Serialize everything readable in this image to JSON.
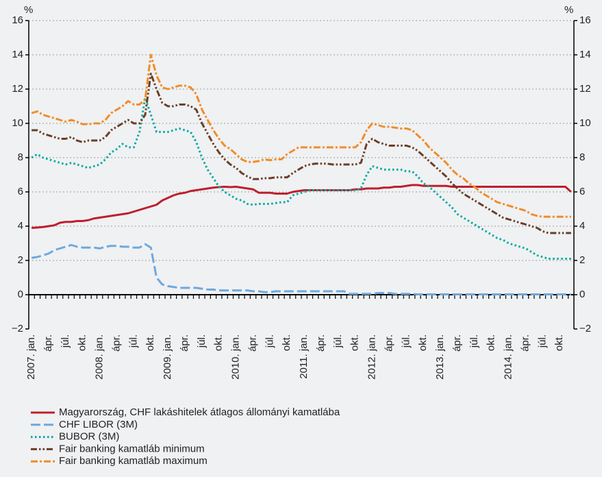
{
  "chart_data": {
    "type": "line",
    "y_unit": "%",
    "categories": [
      "2007. jan.",
      null,
      null,
      "ápr.",
      null,
      null,
      "júl.",
      null,
      null,
      "okt.",
      null,
      null,
      "2008. jan.",
      null,
      null,
      "ápr.",
      null,
      null,
      "júl.",
      null,
      null,
      "okt.",
      null,
      null,
      "2009. jan.",
      null,
      null,
      "ápr.",
      null,
      null,
      "júl.",
      null,
      null,
      "okt.",
      null,
      null,
      "2010. jan.",
      null,
      null,
      "ápr.",
      null,
      null,
      "júl.",
      null,
      null,
      "okt.",
      null,
      null,
      "2011. jan.",
      null,
      null,
      "ápr.",
      null,
      null,
      "júl.",
      null,
      null,
      "okt.",
      null,
      null,
      "2012. jan.",
      null,
      null,
      "ápr.",
      null,
      null,
      "júl.",
      null,
      null,
      "okt.",
      null,
      null,
      "2013. jan.",
      null,
      null,
      "ápr.",
      null,
      null,
      "júl.",
      null,
      null,
      "okt.",
      null,
      null,
      "2014. jan.",
      null,
      null,
      "ápr.",
      null,
      null,
      "júl.",
      null,
      null,
      "okt.",
      null,
      null
    ],
    "series": [
      {
        "name": "Magyarország, CHF lakáshitelek átlagos állományi kamatlába",
        "color": "#be1e2d",
        "dash": "solid",
        "values": [
          3.9,
          3.92,
          3.95,
          4.0,
          4.05,
          4.2,
          4.25,
          4.25,
          4.3,
          4.3,
          4.35,
          4.45,
          4.5,
          4.55,
          4.6,
          4.65,
          4.7,
          4.75,
          4.85,
          4.95,
          5.05,
          5.15,
          5.25,
          5.5,
          5.65,
          5.8,
          5.9,
          5.95,
          6.05,
          6.1,
          6.15,
          6.2,
          6.25,
          6.28,
          6.3,
          6.28,
          6.3,
          6.25,
          6.2,
          6.15,
          5.95,
          5.95,
          5.95,
          5.9,
          5.9,
          5.9,
          6.0,
          6.05,
          6.1,
          6.1,
          6.1,
          6.1,
          6.1,
          6.1,
          6.1,
          6.1,
          6.1,
          6.15,
          6.15,
          6.2,
          6.2,
          6.2,
          6.25,
          6.25,
          6.3,
          6.3,
          6.35,
          6.4,
          6.4,
          6.35,
          6.35,
          6.35,
          6.35,
          6.35,
          6.3,
          6.3,
          6.3,
          6.3,
          6.3,
          6.3,
          6.3,
          6.3,
          6.3,
          6.3,
          6.3,
          6.3,
          6.3,
          6.3,
          6.3,
          6.3,
          6.3,
          6.3,
          6.3,
          6.3,
          6.3,
          6.0
        ]
      },
      {
        "name": "CHF LIBOR (3M)",
        "color": "#6fa8dc",
        "dash": "dashed",
        "values": [
          2.15,
          2.2,
          2.3,
          2.4,
          2.6,
          2.7,
          2.8,
          2.9,
          2.8,
          2.75,
          2.75,
          2.75,
          2.7,
          2.8,
          2.85,
          2.85,
          2.8,
          2.8,
          2.75,
          2.75,
          2.95,
          2.75,
          1.0,
          0.6,
          0.5,
          0.45,
          0.4,
          0.4,
          0.4,
          0.4,
          0.35,
          0.3,
          0.3,
          0.25,
          0.25,
          0.25,
          0.25,
          0.25,
          0.25,
          0.2,
          0.2,
          0.15,
          0.15,
          0.2,
          0.2,
          0.2,
          0.2,
          0.2,
          0.2,
          0.2,
          0.2,
          0.2,
          0.2,
          0.2,
          0.2,
          0.2,
          0.05,
          0.05,
          0.05,
          0.05,
          0.05,
          0.1,
          0.1,
          0.1,
          0.05,
          0.05,
          0.05,
          0.05,
          0.02,
          0.02,
          0.02,
          0.02,
          0.02,
          0.02,
          0.02,
          0.02,
          0.02,
          0.02,
          0.02,
          0.02,
          0.02,
          0.02,
          0.02,
          0.02,
          0.02,
          0.02,
          0.02,
          0.02,
          0.02,
          0.02,
          0.02,
          0.02,
          0.02,
          0.02,
          0.02,
          0.01
        ]
      },
      {
        "name": "BUBOR (3M)",
        "color": "#00a99d",
        "dash": "dotted",
        "values": [
          8.0,
          8.2,
          8.0,
          7.9,
          7.8,
          7.7,
          7.6,
          7.7,
          7.6,
          7.5,
          7.4,
          7.5,
          7.6,
          7.9,
          8.3,
          8.5,
          8.8,
          8.6,
          8.6,
          9.5,
          11.5,
          10.5,
          9.5,
          9.5,
          9.5,
          9.6,
          9.7,
          9.6,
          9.5,
          8.9,
          8.0,
          7.3,
          6.8,
          6.3,
          6.0,
          5.8,
          5.6,
          5.5,
          5.3,
          5.25,
          5.3,
          5.3,
          5.3,
          5.35,
          5.4,
          5.4,
          5.8,
          5.9,
          6.0,
          6.1,
          6.1,
          6.1,
          6.1,
          6.1,
          6.1,
          6.1,
          6.1,
          6.1,
          6.2,
          7.0,
          7.5,
          7.4,
          7.3,
          7.3,
          7.3,
          7.3,
          7.2,
          7.2,
          6.9,
          6.5,
          6.3,
          6.0,
          5.7,
          5.4,
          5.1,
          4.7,
          4.5,
          4.3,
          4.1,
          3.9,
          3.7,
          3.5,
          3.3,
          3.2,
          3.0,
          2.9,
          2.8,
          2.7,
          2.5,
          2.3,
          2.2,
          2.1,
          2.1,
          2.1,
          2.1,
          2.1
        ]
      },
      {
        "name": "Fair banking kamatláb minimum",
        "color": "#6b3e26",
        "dash": "dashdotdot",
        "values": [
          9.6,
          9.6,
          9.4,
          9.3,
          9.2,
          9.1,
          9.1,
          9.2,
          9.0,
          8.9,
          9.0,
          9.0,
          9.0,
          9.2,
          9.6,
          9.8,
          10.0,
          10.2,
          10.0,
          10.0,
          10.5,
          12.9,
          12.0,
          11.2,
          11.0,
          11.0,
          11.1,
          11.1,
          11.0,
          10.8,
          10.0,
          9.4,
          8.8,
          8.3,
          7.9,
          7.6,
          7.4,
          7.1,
          6.9,
          6.75,
          6.75,
          6.8,
          6.8,
          6.85,
          6.85,
          6.85,
          7.1,
          7.3,
          7.5,
          7.6,
          7.65,
          7.65,
          7.65,
          7.6,
          7.6,
          7.6,
          7.6,
          7.6,
          7.7,
          8.8,
          9.1,
          8.9,
          8.8,
          8.7,
          8.7,
          8.7,
          8.7,
          8.6,
          8.4,
          8.1,
          7.8,
          7.5,
          7.2,
          6.9,
          6.5,
          6.2,
          5.9,
          5.7,
          5.5,
          5.3,
          5.1,
          4.9,
          4.7,
          4.5,
          4.4,
          4.3,
          4.2,
          4.1,
          4.0,
          3.9,
          3.7,
          3.6,
          3.6,
          3.6,
          3.6,
          3.6
        ]
      },
      {
        "name": "Fair banking kamatláb maximum",
        "color": "#f28c28",
        "dash": "dashdot",
        "values": [
          10.6,
          10.7,
          10.5,
          10.4,
          10.3,
          10.2,
          10.1,
          10.2,
          10.1,
          9.95,
          9.95,
          10.0,
          10.0,
          10.2,
          10.6,
          10.8,
          11.0,
          11.3,
          11.1,
          11.1,
          11.4,
          14.0,
          12.8,
          12.1,
          12.0,
          12.1,
          12.2,
          12.2,
          12.1,
          11.7,
          10.8,
          10.2,
          9.6,
          9.1,
          8.7,
          8.5,
          8.2,
          7.9,
          7.75,
          7.75,
          7.8,
          7.9,
          7.85,
          7.9,
          7.9,
          8.2,
          8.4,
          8.6,
          8.6,
          8.6,
          8.6,
          8.6,
          8.6,
          8.6,
          8.6,
          8.6,
          8.6,
          8.6,
          8.9,
          9.6,
          10.0,
          9.9,
          9.8,
          9.8,
          9.75,
          9.7,
          9.7,
          9.6,
          9.3,
          9.0,
          8.6,
          8.3,
          8.0,
          7.7,
          7.3,
          7.0,
          6.8,
          6.5,
          6.3,
          6.0,
          5.8,
          5.6,
          5.4,
          5.3,
          5.2,
          5.1,
          5.0,
          4.9,
          4.7,
          4.6,
          4.55,
          4.55,
          4.55,
          4.55,
          4.55,
          4.55
        ]
      }
    ],
    "ylim": [
      -2,
      16
    ],
    "yticks": [
      {
        "value": -2,
        "label": "−2"
      },
      0,
      2,
      4,
      6,
      8,
      10,
      12,
      14,
      16
    ],
    "grid": true
  }
}
